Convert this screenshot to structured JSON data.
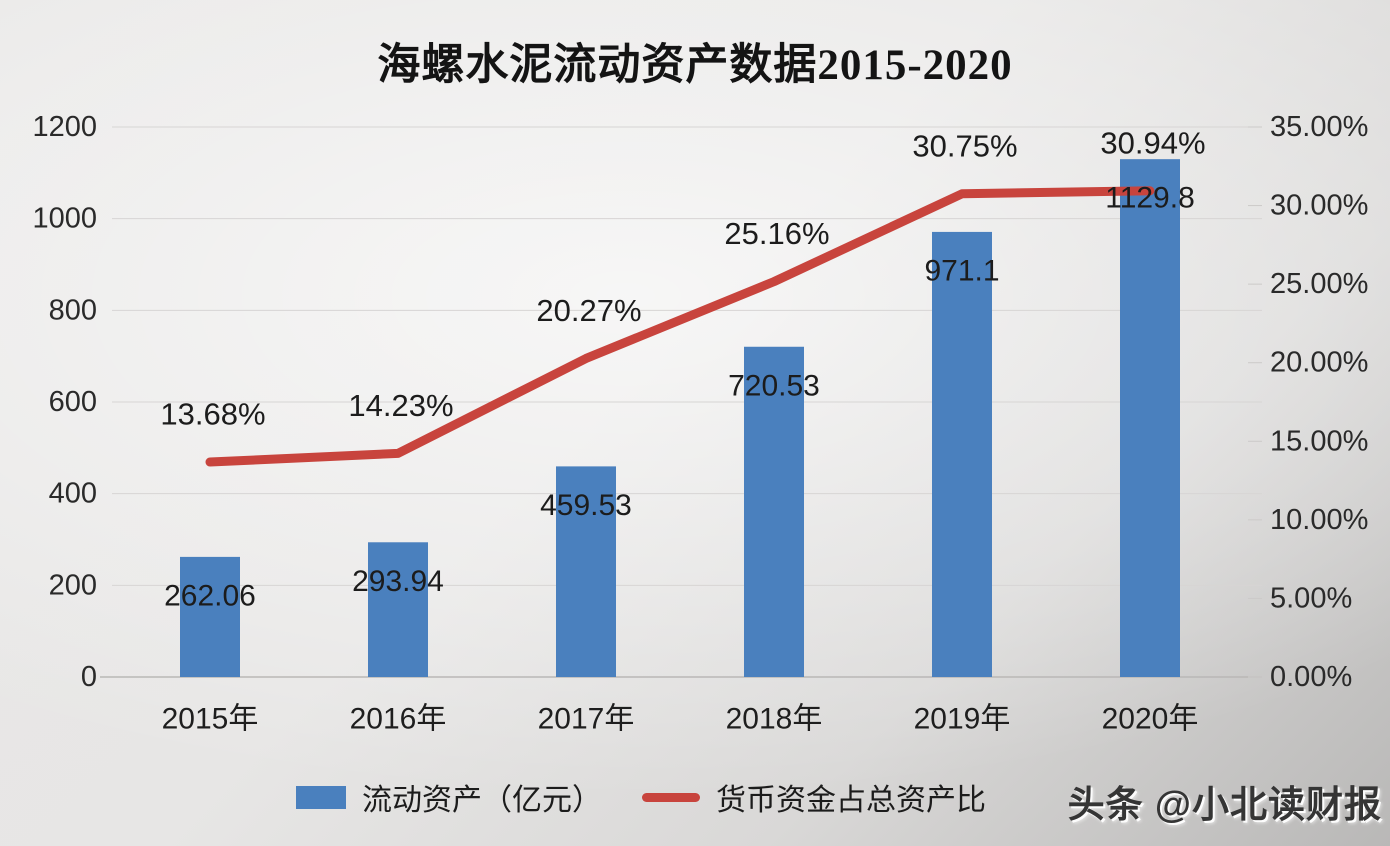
{
  "chart_data": {
    "type": "bar",
    "subtype": "combo-bar-line-dual-axis",
    "title": "海螺水泥流动资产数据2015-2020",
    "categories": [
      "2015年",
      "2016年",
      "2017年",
      "2018年",
      "2019年",
      "2020年"
    ],
    "series": [
      {
        "name": "流动资产（亿元）",
        "type": "bar",
        "axis": "left",
        "color": "#4a80be",
        "values": [
          262.06,
          293.94,
          459.53,
          720.53,
          971.1,
          1129.8
        ],
        "labels": [
          "262.06",
          "293.94",
          "459.53",
          "720.53",
          "971.1",
          "1129.8"
        ]
      },
      {
        "name": "货币资金占总资产比",
        "type": "line",
        "axis": "right",
        "color": "#c8443d",
        "values": [
          13.68,
          14.23,
          20.27,
          25.16,
          30.75,
          30.94
        ],
        "labels": [
          "13.68%",
          "14.23%",
          "20.27%",
          "25.16%",
          "30.75%",
          "30.94%"
        ]
      }
    ],
    "left_axis": {
      "min": 0,
      "max": 1200,
      "step": 200,
      "ticks": [
        "0",
        "200",
        "400",
        "600",
        "800",
        "1000",
        "1200"
      ]
    },
    "right_axis": {
      "min": 0,
      "max": 35,
      "step": 5,
      "ticks": [
        "0.00%",
        "5.00%",
        "10.00%",
        "15.00%",
        "20.00%",
        "25.00%",
        "30.00%",
        "35.00%"
      ]
    },
    "grid": true,
    "legend_position": "bottom",
    "legend": [
      {
        "label": "流动资产（亿元）",
        "marker": "bar-swatch",
        "color": "#4a80be"
      },
      {
        "label": "货币资金占总资产比",
        "marker": "line-swatch",
        "color": "#c8443d"
      }
    ]
  },
  "watermark": {
    "text": "头条 @小北读财报"
  }
}
